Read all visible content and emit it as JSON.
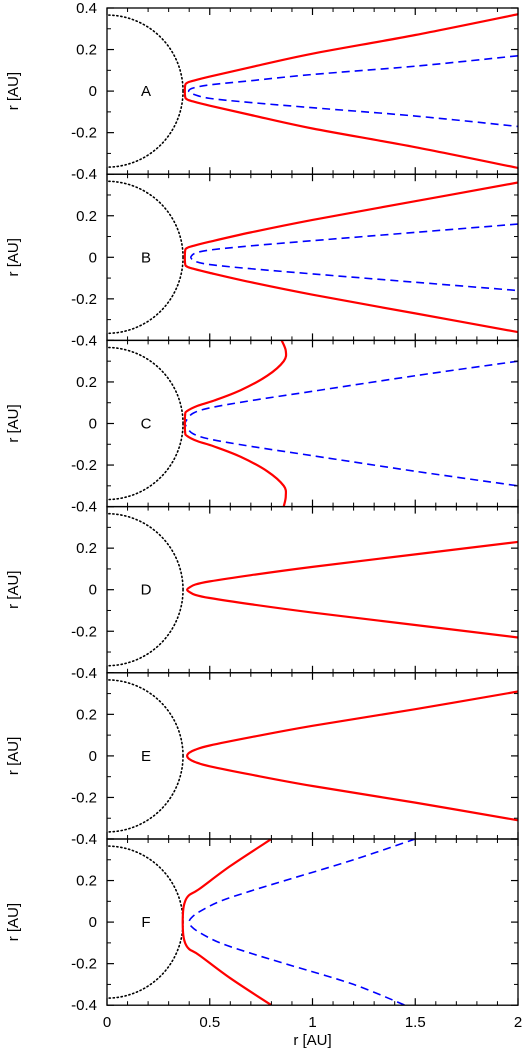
{
  "chart_data": {
    "type": "line",
    "xlabel": "r [AU]",
    "ylabel": "r [AU]",
    "xlim": [
      0,
      2
    ],
    "ylim": [
      -0.4,
      0.4
    ],
    "x_ticks": [
      "0",
      "0.5",
      "1",
      "1.5",
      "2"
    ],
    "y_ticks_top_panel": [
      "0.4",
      "0.2",
      "0",
      "-0.2",
      "-0.4"
    ],
    "y_ticks_other_panels": [
      "0.2",
      "0",
      "-0.2",
      "-0.4"
    ],
    "colors": {
      "solid": "#ff0000",
      "dashed": "#0000ff",
      "dotted": "#000000"
    },
    "star_radius": 0.37,
    "panels": [
      {
        "label": "A",
        "solid": [
          [
            2.0,
            0.37
          ],
          [
            1.5,
            0.27
          ],
          [
            1.0,
            0.18
          ],
          [
            0.7,
            0.115
          ],
          [
            0.5,
            0.07
          ],
          [
            0.42,
            0.05
          ],
          [
            0.39,
            0.04
          ],
          [
            0.38,
            0.025
          ],
          [
            0.38,
            -0.025
          ],
          [
            0.39,
            -0.04
          ],
          [
            0.42,
            -0.05
          ],
          [
            0.5,
            -0.07
          ],
          [
            0.7,
            -0.115
          ],
          [
            1.0,
            -0.18
          ],
          [
            1.5,
            -0.27
          ],
          [
            2.0,
            -0.37
          ]
        ],
        "dashed": [
          [
            2.0,
            0.17
          ],
          [
            1.5,
            0.12
          ],
          [
            1.0,
            0.08
          ],
          [
            0.7,
            0.05
          ],
          [
            0.5,
            0.03
          ],
          [
            0.42,
            0.015
          ],
          [
            0.4,
            0.005
          ],
          [
            0.4,
            -0.005
          ],
          [
            0.42,
            -0.015
          ],
          [
            0.5,
            -0.035
          ],
          [
            0.7,
            -0.055
          ],
          [
            1.0,
            -0.08
          ],
          [
            1.5,
            -0.12
          ],
          [
            2.0,
            -0.17
          ]
        ]
      },
      {
        "label": "B",
        "solid": [
          [
            2.0,
            0.36
          ],
          [
            1.5,
            0.27
          ],
          [
            1.0,
            0.18
          ],
          [
            0.7,
            0.12
          ],
          [
            0.5,
            0.075
          ],
          [
            0.42,
            0.055
          ],
          [
            0.39,
            0.045
          ],
          [
            0.38,
            0.03
          ],
          [
            0.38,
            -0.03
          ],
          [
            0.39,
            -0.045
          ],
          [
            0.42,
            -0.055
          ],
          [
            0.5,
            -0.075
          ],
          [
            0.7,
            -0.12
          ],
          [
            1.0,
            -0.18
          ],
          [
            1.5,
            -0.27
          ],
          [
            2.0,
            -0.36
          ]
        ],
        "dashed": [
          [
            2.0,
            0.16
          ],
          [
            1.5,
            0.12
          ],
          [
            1.0,
            0.08
          ],
          [
            0.7,
            0.055
          ],
          [
            0.5,
            0.035
          ],
          [
            0.43,
            0.02
          ],
          [
            0.41,
            0.005
          ],
          [
            0.41,
            -0.005
          ],
          [
            0.43,
            -0.02
          ],
          [
            0.5,
            -0.035
          ],
          [
            0.7,
            -0.055
          ],
          [
            1.0,
            -0.08
          ],
          [
            1.5,
            -0.12
          ],
          [
            2.0,
            -0.16
          ]
        ]
      },
      {
        "label": "C",
        "solid": [
          [
            0.85,
            0.4
          ],
          [
            0.87,
            0.35
          ],
          [
            0.86,
            0.3
          ],
          [
            0.78,
            0.23
          ],
          [
            0.65,
            0.16
          ],
          [
            0.52,
            0.11
          ],
          [
            0.44,
            0.085
          ],
          [
            0.39,
            0.06
          ],
          [
            0.38,
            0.04
          ],
          [
            0.38,
            -0.04
          ],
          [
            0.39,
            -0.06
          ],
          [
            0.44,
            -0.085
          ],
          [
            0.52,
            -0.11
          ],
          [
            0.65,
            -0.16
          ],
          [
            0.78,
            -0.23
          ],
          [
            0.86,
            -0.3
          ],
          [
            0.87,
            -0.35
          ],
          [
            0.86,
            -0.4
          ]
        ],
        "dashed": [
          [
            2.0,
            0.3
          ],
          [
            1.5,
            0.23
          ],
          [
            1.0,
            0.155
          ],
          [
            0.7,
            0.11
          ],
          [
            0.5,
            0.075
          ],
          [
            0.42,
            0.05
          ],
          [
            0.39,
            0.02
          ],
          [
            0.38,
            0.0
          ],
          [
            0.39,
            -0.02
          ],
          [
            0.42,
            -0.05
          ],
          [
            0.5,
            -0.075
          ],
          [
            0.7,
            -0.11
          ],
          [
            1.0,
            -0.155
          ],
          [
            1.5,
            -0.23
          ],
          [
            2.0,
            -0.3
          ]
        ]
      },
      {
        "label": "D",
        "solid": [
          [
            2.0,
            0.23
          ],
          [
            1.5,
            0.17
          ],
          [
            1.0,
            0.11
          ],
          [
            0.7,
            0.07
          ],
          [
            0.5,
            0.04
          ],
          [
            0.43,
            0.025
          ],
          [
            0.4,
            0.01
          ],
          [
            0.39,
            0.0
          ],
          [
            0.4,
            -0.01
          ],
          [
            0.43,
            -0.025
          ],
          [
            0.5,
            -0.04
          ],
          [
            0.7,
            -0.07
          ],
          [
            1.0,
            -0.11
          ],
          [
            1.5,
            -0.17
          ],
          [
            2.0,
            -0.23
          ]
        ],
        "dashed": []
      },
      {
        "label": "E",
        "solid": [
          [
            2.0,
            0.31
          ],
          [
            1.5,
            0.225
          ],
          [
            1.0,
            0.145
          ],
          [
            0.7,
            0.09
          ],
          [
            0.5,
            0.05
          ],
          [
            0.43,
            0.03
          ],
          [
            0.4,
            0.015
          ],
          [
            0.39,
            0.0
          ],
          [
            0.4,
            -0.015
          ],
          [
            0.43,
            -0.03
          ],
          [
            0.5,
            -0.05
          ],
          [
            0.7,
            -0.09
          ],
          [
            1.0,
            -0.145
          ],
          [
            1.5,
            -0.225
          ],
          [
            2.0,
            -0.31
          ]
        ],
        "dashed": []
      },
      {
        "label": "F",
        "solid": [
          [
            0.8,
            0.4
          ],
          [
            0.6,
            0.27
          ],
          [
            0.45,
            0.16
          ],
          [
            0.4,
            0.13
          ],
          [
            0.38,
            0.1
          ],
          [
            0.37,
            0.05
          ],
          [
            0.37,
            -0.05
          ],
          [
            0.38,
            -0.1
          ],
          [
            0.4,
            -0.13
          ],
          [
            0.45,
            -0.16
          ],
          [
            0.6,
            -0.27
          ],
          [
            0.8,
            -0.4
          ]
        ],
        "dashed": [
          [
            1.5,
            0.4
          ],
          [
            1.2,
            0.3
          ],
          [
            0.9,
            0.21
          ],
          [
            0.7,
            0.15
          ],
          [
            0.55,
            0.1
          ],
          [
            0.45,
            0.05
          ],
          [
            0.41,
            0.02
          ],
          [
            0.4,
            0.0
          ],
          [
            0.41,
            -0.02
          ],
          [
            0.45,
            -0.05
          ],
          [
            0.55,
            -0.1
          ],
          [
            0.7,
            -0.15
          ],
          [
            0.9,
            -0.21
          ],
          [
            1.2,
            -0.3
          ],
          [
            1.45,
            -0.4
          ]
        ]
      }
    ]
  }
}
